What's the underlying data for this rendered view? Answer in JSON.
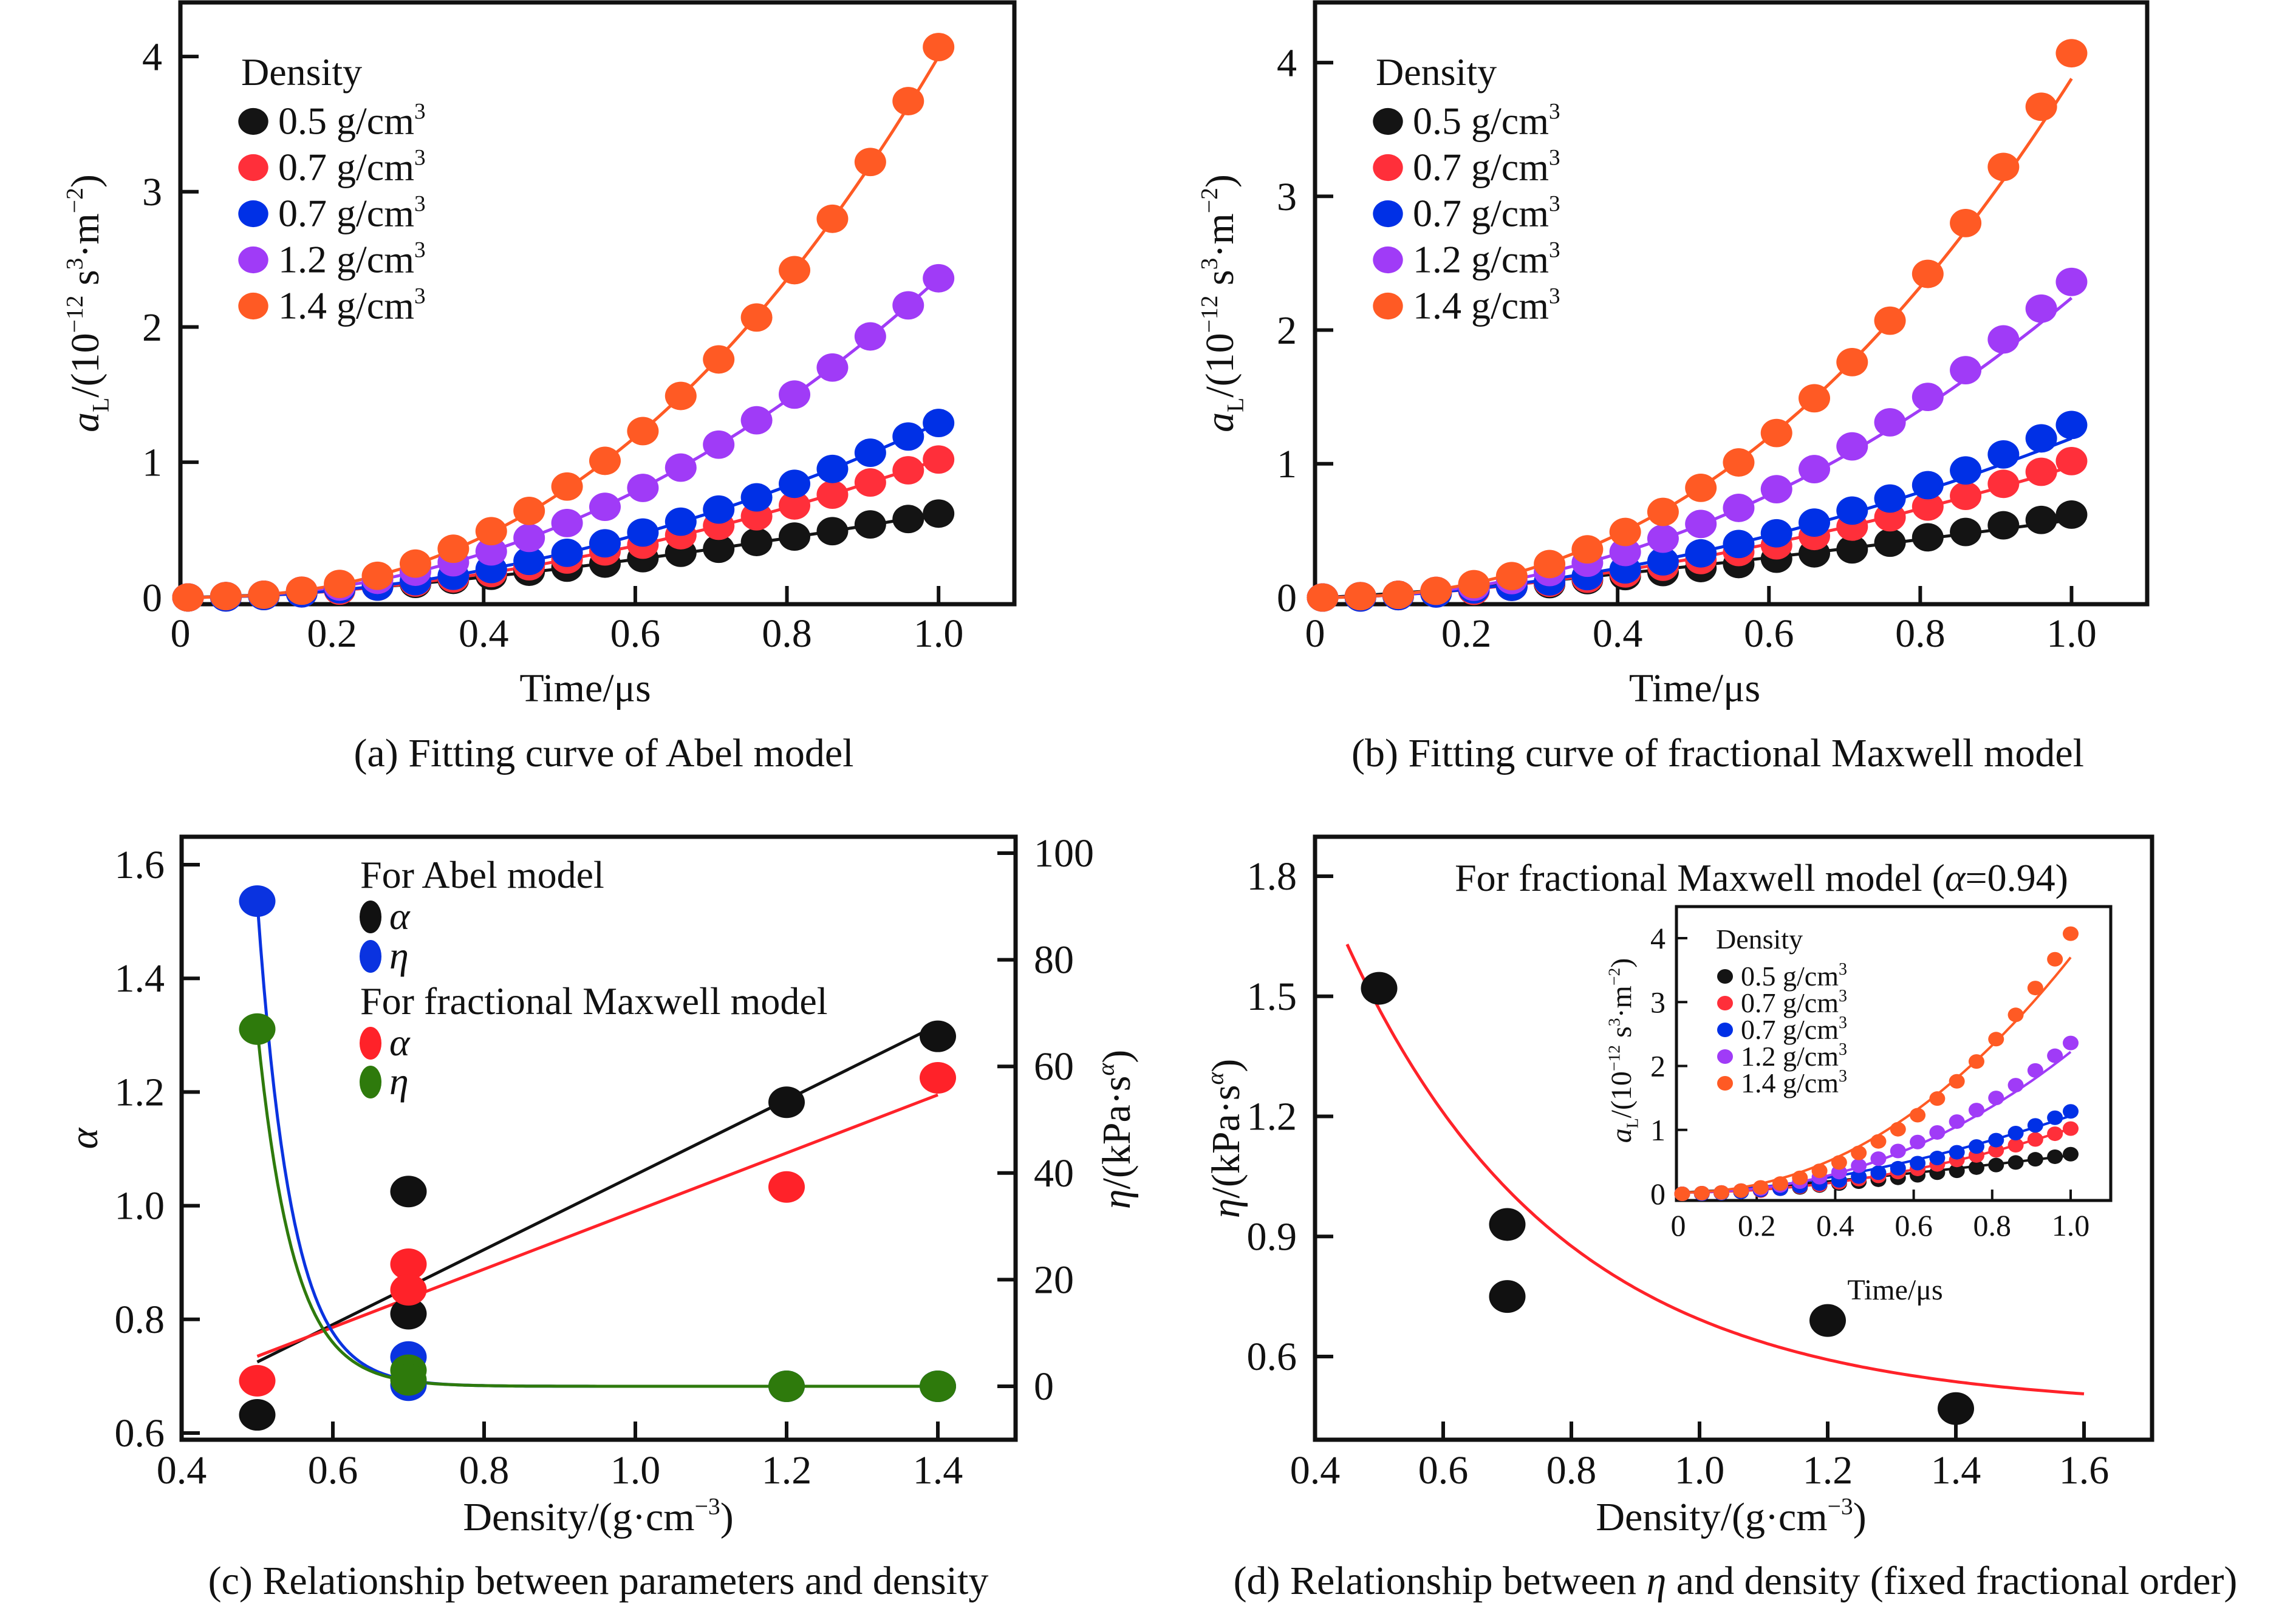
{
  "chart_data": [
    {
      "id": "a",
      "type": "scatter",
      "title": "",
      "caption": "(a) Fitting curve of Abel model",
      "xlabel": "Time/μs",
      "ylabel": "a_L/(10^-12 s^3·m^-2)",
      "ylabel_parts": {
        "main": "a",
        "sub": "L",
        "rest1": "/(10",
        "sup1": "−12",
        "rest2": " s",
        "sup2": "3",
        "rest3": "·m",
        "sup3": "−2",
        "rest4": ")"
      },
      "xlim": [
        0,
        1.1
      ],
      "ylim": [
        -0.05,
        4.4
      ],
      "xticks": [
        0,
        0.2,
        0.4,
        0.6,
        0.8,
        1.0
      ],
      "xtick_labels": [
        "0",
        "0.2",
        "0.4",
        "0.6",
        "0.8",
        "1.0"
      ],
      "yticks": [
        0,
        1,
        2,
        3,
        4
      ],
      "ytick_labels": [
        "0",
        "1",
        "2",
        "3",
        "4"
      ],
      "legend": {
        "title": "Density",
        "placement": "top-left"
      },
      "x": [
        0.01,
        0.06,
        0.11,
        0.16,
        0.21,
        0.26,
        0.31,
        0.36,
        0.41,
        0.46,
        0.51,
        0.56,
        0.61,
        0.66,
        0.71,
        0.76,
        0.81,
        0.86,
        0.91,
        0.96,
        1.0
      ],
      "series": [
        {
          "name": "0.5 g/cm3",
          "label": "0.5 g/cm",
          "sup": "3",
          "color": "#141414",
          "values": [
            0.0,
            0.01,
            0.02,
            0.04,
            0.06,
            0.08,
            0.1,
            0.13,
            0.16,
            0.19,
            0.22,
            0.25,
            0.29,
            0.33,
            0.36,
            0.41,
            0.45,
            0.49,
            0.54,
            0.58,
            0.62
          ],
          "fit": {
            "A": 0.62,
            "n": 1.55
          }
        },
        {
          "name": "0.7 g/cm3",
          "label": "0.7 g/cm",
          "sup": "3",
          "color": "#FF2F3A",
          "values": [
            0.0,
            0.0,
            0.01,
            0.03,
            0.05,
            0.08,
            0.11,
            0.14,
            0.18,
            0.23,
            0.28,
            0.34,
            0.39,
            0.46,
            0.53,
            0.6,
            0.68,
            0.76,
            0.85,
            0.94,
            1.02
          ],
          "fit": {
            "A": 1.02,
            "n": 1.92
          }
        },
        {
          "name": "0.7 g/cm3",
          "label": "0.7 g/cm",
          "sup": "3",
          "color": "#0030E6",
          "values": [
            0.0,
            0.0,
            0.01,
            0.03,
            0.06,
            0.08,
            0.12,
            0.16,
            0.21,
            0.27,
            0.33,
            0.4,
            0.48,
            0.56,
            0.65,
            0.74,
            0.84,
            0.95,
            1.07,
            1.19,
            1.29
          ],
          "fit": {
            "A": 1.29,
            "n": 2.02
          }
        },
        {
          "name": "1.2 g/cm3",
          "label": "1.2 g/cm",
          "sup": "3",
          "color": "#A03BF7",
          "values": [
            0.0,
            0.01,
            0.02,
            0.05,
            0.08,
            0.13,
            0.19,
            0.26,
            0.34,
            0.44,
            0.55,
            0.67,
            0.81,
            0.96,
            1.13,
            1.31,
            1.5,
            1.7,
            1.93,
            2.16,
            2.36
          ],
          "fit": {
            "A": 2.36,
            "n": 2.16
          }
        },
        {
          "name": "1.4 g/cm3",
          "label": "1.4 g/cm",
          "sup": "3",
          "color": "#FF5A24",
          "values": [
            0.0,
            0.01,
            0.02,
            0.05,
            0.1,
            0.16,
            0.25,
            0.36,
            0.49,
            0.64,
            0.82,
            1.01,
            1.23,
            1.49,
            1.76,
            2.07,
            2.42,
            2.8,
            3.22,
            3.67,
            4.07
          ],
          "fit": {
            "A": 4.0,
            "n": 2.38
          }
        }
      ]
    },
    {
      "id": "b",
      "type": "scatter",
      "caption": "(b) Fitting curve of fractional Maxwell model",
      "xlabel": "Time/μs",
      "ylabel": "a_L/(10^-12 s^3·m^-2)",
      "xlim": [
        0,
        1.1
      ],
      "ylim": [
        -0.05,
        4.45
      ],
      "xticks": [
        0,
        0.2,
        0.4,
        0.6,
        0.8,
        1.0
      ],
      "xtick_labels": [
        "0",
        "0.2",
        "0.4",
        "0.6",
        "0.8",
        "1.0"
      ],
      "yticks": [
        0,
        1,
        2,
        3,
        4
      ],
      "ytick_labels": [
        "0",
        "1",
        "2",
        "3",
        "4"
      ],
      "legend": {
        "title": "Density",
        "placement": "top-left"
      },
      "x": [
        0.01,
        0.06,
        0.11,
        0.16,
        0.21,
        0.26,
        0.31,
        0.36,
        0.41,
        0.46,
        0.51,
        0.56,
        0.61,
        0.66,
        0.71,
        0.76,
        0.81,
        0.86,
        0.91,
        0.96,
        1.0
      ],
      "series": [
        {
          "name": "0.5 g/cm3",
          "label": "0.5 g/cm",
          "sup": "3",
          "color": "#141414",
          "values": [
            0.0,
            0.01,
            0.02,
            0.04,
            0.06,
            0.08,
            0.1,
            0.13,
            0.16,
            0.19,
            0.22,
            0.25,
            0.29,
            0.33,
            0.36,
            0.41,
            0.45,
            0.49,
            0.54,
            0.58,
            0.62
          ],
          "fit": {
            "A": 0.58,
            "n": 1.3,
            "c": 0.0
          }
        },
        {
          "name": "0.7 g/cm3",
          "label": "0.7 g/cm",
          "sup": "3",
          "color": "#FF2F3A",
          "values": [
            0.0,
            0.0,
            0.01,
            0.03,
            0.05,
            0.08,
            0.11,
            0.14,
            0.18,
            0.23,
            0.28,
            0.34,
            0.39,
            0.46,
            0.53,
            0.6,
            0.68,
            0.76,
            0.85,
            0.94,
            1.02
          ],
          "fit": {
            "A": 0.98,
            "n": 1.75,
            "c": 0.0
          }
        },
        {
          "name": "0.7 g/cm3",
          "label": "0.7 g/cm",
          "sup": "3",
          "color": "#0030E6",
          "values": [
            0.0,
            0.0,
            0.01,
            0.03,
            0.06,
            0.08,
            0.12,
            0.16,
            0.21,
            0.27,
            0.33,
            0.4,
            0.48,
            0.56,
            0.65,
            0.74,
            0.84,
            0.95,
            1.07,
            1.19,
            1.29
          ],
          "fit": {
            "A": 1.19,
            "n": 1.85,
            "c": 0.0
          }
        },
        {
          "name": "1.2 g/cm3",
          "label": "1.2 g/cm",
          "sup": "3",
          "color": "#A03BF7",
          "values": [
            0.0,
            0.01,
            0.02,
            0.05,
            0.08,
            0.13,
            0.19,
            0.26,
            0.34,
            0.44,
            0.55,
            0.67,
            0.81,
            0.96,
            1.13,
            1.31,
            1.5,
            1.7,
            1.93,
            2.16,
            2.36
          ],
          "fit": {
            "A": 2.24,
            "n": 2.1,
            "c": 0.0
          }
        },
        {
          "name": "1.4 g/cm3",
          "label": "1.4 g/cm",
          "sup": "3",
          "color": "#FF5A24",
          "values": [
            0.0,
            0.01,
            0.02,
            0.05,
            0.1,
            0.16,
            0.25,
            0.36,
            0.49,
            0.64,
            0.82,
            1.01,
            1.23,
            1.49,
            1.76,
            2.07,
            2.42,
            2.8,
            3.22,
            3.67,
            4.07
          ],
          "fit": {
            "A": 3.88,
            "n": 2.3,
            "c": 0.0
          }
        }
      ]
    },
    {
      "id": "c",
      "type": "scatter",
      "caption": "(c) Relationship between parameters and density",
      "xlabel": "Density/(g·cm^-3)",
      "ylabel": "α",
      "ylabel_right": "η/(kPa·s^α)",
      "xlim": [
        0.4,
        1.5
      ],
      "ylim": [
        0.585,
        1.65
      ],
      "ylim_right": [
        -10.3,
        102
      ],
      "xticks": [
        0.4,
        0.6,
        0.8,
        1.0,
        1.2,
        1.4
      ],
      "xtick_labels": [
        "0.4",
        "0.6",
        "0.8",
        "1.0",
        "1.2",
        "1.4"
      ],
      "yticks": [
        0.6,
        0.8,
        1.0,
        1.2,
        1.4,
        1.6
      ],
      "ytick_labels": [
        "0.6",
        "0.8",
        "1.0",
        "1.2",
        "1.4",
        "1.6"
      ],
      "yticks_right": [
        0,
        20,
        40,
        60,
        80,
        100
      ],
      "ytick_labels_right": [
        "0",
        "20",
        "40",
        "60",
        "80",
        "100"
      ],
      "legend": {
        "placement": "top-center",
        "groups": [
          {
            "title": "For Abel model",
            "items": [
              {
                "symbol": "α",
                "color": "#111111"
              },
              {
                "symbol": "η",
                "color": "#0A33E0"
              }
            ]
          },
          {
            "title": "For fractional Maxwell model",
            "items": [
              {
                "symbol": "α",
                "color": "#FF2229"
              },
              {
                "symbol": "η",
                "color": "#2E7A0C"
              }
            ]
          }
        ]
      },
      "series": [
        {
          "name": "Abel α",
          "axis": "left",
          "color": "#111111",
          "x": [
            0.5,
            0.7,
            0.7,
            1.2,
            1.4
          ],
          "values": [
            0.632,
            1.025,
            0.81,
            1.182,
            1.298
          ],
          "fit": {
            "type": "linear",
            "x": [
              0.5,
              1.4
            ],
            "y": [
              0.725,
              1.318
            ]
          }
        },
        {
          "name": "FM α",
          "axis": "left",
          "color": "#FF2229",
          "x": [
            0.5,
            0.7,
            0.7,
            1.2,
            1.4
          ],
          "values": [
            0.692,
            0.897,
            0.852,
            1.033,
            1.225
          ],
          "fit": {
            "type": "linear",
            "x": [
              0.5,
              1.4
            ],
            "y": [
              0.735,
              1.195
            ]
          }
        },
        {
          "name": "Abel η",
          "axis": "right",
          "color": "#0A33E0",
          "x": [
            0.5,
            0.7,
            0.7,
            1.2,
            1.4
          ],
          "values": [
            91,
            5.5,
            0.2,
            0,
            0
          ],
          "fit": {
            "type": "exp",
            "x": [
              0.5,
              1.4
            ],
            "amp": 91,
            "k": 22,
            "offset": 0
          }
        },
        {
          "name": "FM η",
          "axis": "right",
          "color": "#2E7A0C",
          "x": [
            0.5,
            0.7,
            0.7,
            1.2,
            1.4
          ],
          "values": [
            67,
            3.0,
            1.2,
            0,
            0
          ],
          "fit": {
            "type": "exp",
            "x": [
              0.5,
              1.4
            ],
            "amp": 67,
            "k": 21,
            "offset": 0
          }
        }
      ]
    },
    {
      "id": "d",
      "type": "scatter",
      "caption": "(d) Relationship between η and density (fixed fractional order)",
      "caption_parts": [
        "(d) Relationship between ",
        "η",
        " and density (fixed fractional order)"
      ],
      "title": "For fractional Maxwell model (α=0.94)",
      "title_parts": [
        "For fractional Maxwell model (",
        "α",
        "=0.94)"
      ],
      "xlabel": "Density/(g·cm^-3)",
      "ylabel": "η/(kPa·s^α)",
      "xlim": [
        0.4,
        1.66
      ],
      "ylim": [
        0.42,
        1.9
      ],
      "xticks": [
        0.4,
        0.6,
        0.8,
        1.0,
        1.2,
        1.4,
        1.6
      ],
      "xtick_labels": [
        "0.4",
        "0.6",
        "0.8",
        "1.0",
        "1.2",
        "1.4",
        "1.6"
      ],
      "yticks": [
        0.6,
        0.9,
        1.2,
        1.5,
        1.8
      ],
      "ytick_labels": [
        "0.6",
        "0.9",
        "1.2",
        "1.5",
        "1.8"
      ],
      "series": [
        {
          "name": "η",
          "color": "#111111",
          "x": [
            0.5,
            0.7,
            0.7,
            1.2,
            1.4
          ],
          "values": [
            1.52,
            0.93,
            0.75,
            0.69,
            0.47
          ],
          "fit": {
            "type": "exp",
            "x": [
              0.45,
              1.6
            ],
            "amp": 1.16,
            "k": 3.0,
            "offset": 0.47,
            "x0": 0.45
          }
        }
      ],
      "inset": {
        "type": "scatter",
        "xlabel": "Time/μs",
        "ylabel": "a_L/(10^-12 s^3·m^-2)",
        "xlim": [
          0,
          1.12
        ],
        "ylim": [
          -0.1,
          4.5
        ],
        "xticks": [
          0,
          0.2,
          0.4,
          0.6,
          0.8,
          1.0
        ],
        "xtick_labels": [
          "0",
          "0.2",
          "0.4",
          "0.6",
          "0.8",
          "1.0"
        ],
        "yticks": [
          0,
          1,
          2,
          3,
          4
        ],
        "ytick_labels": [
          "0",
          "1",
          "2",
          "3",
          "4"
        ],
        "legend": {
          "title": "Density",
          "placement": "top-left"
        },
        "x": [
          0.01,
          0.06,
          0.11,
          0.16,
          0.21,
          0.26,
          0.31,
          0.36,
          0.41,
          0.46,
          0.51,
          0.56,
          0.61,
          0.66,
          0.71,
          0.76,
          0.81,
          0.86,
          0.91,
          0.96,
          1.0
        ],
        "series": [
          {
            "name": "0.5 g/cm3",
            "label": "0.5 g/cm",
            "sup": "3",
            "color": "#141414",
            "values": [
              0.0,
              0.01,
              0.02,
              0.04,
              0.06,
              0.08,
              0.1,
              0.13,
              0.16,
              0.19,
              0.22,
              0.25,
              0.29,
              0.33,
              0.36,
              0.41,
              0.45,
              0.49,
              0.54,
              0.58,
              0.62
            ],
            "fit": {
              "A": 0.58,
              "n": 1.25
            }
          },
          {
            "name": "0.7 g/cm3",
            "label": "0.7 g/cm",
            "sup": "3",
            "color": "#FF2F3A",
            "values": [
              0.0,
              0.0,
              0.01,
              0.03,
              0.05,
              0.08,
              0.11,
              0.14,
              0.18,
              0.23,
              0.28,
              0.34,
              0.39,
              0.46,
              0.53,
              0.6,
              0.68,
              0.76,
              0.85,
              0.94,
              1.02
            ],
            "fit": {
              "A": 1.0,
              "n": 2.0
            }
          },
          {
            "name": "0.7 g/cm3",
            "label": "0.7 g/cm",
            "sup": "3",
            "color": "#0030E6",
            "values": [
              0.0,
              0.0,
              0.01,
              0.03,
              0.06,
              0.08,
              0.12,
              0.16,
              0.21,
              0.27,
              0.33,
              0.4,
              0.48,
              0.56,
              0.65,
              0.74,
              0.84,
              0.95,
              1.07,
              1.19,
              1.29
            ],
            "fit": {
              "A": 1.2,
              "n": 1.7
            }
          },
          {
            "name": "1.2 g/cm3",
            "label": "1.2 g/cm",
            "sup": "3",
            "color": "#A03BF7",
            "values": [
              0.0,
              0.01,
              0.02,
              0.05,
              0.08,
              0.13,
              0.19,
              0.26,
              0.34,
              0.44,
              0.55,
              0.67,
              0.81,
              0.96,
              1.13,
              1.31,
              1.5,
              1.7,
              1.93,
              2.16,
              2.36
            ],
            "fit": {
              "A": 2.2,
              "n": 2.2
            }
          },
          {
            "name": "1.4 g/cm3",
            "label": "1.4 g/cm",
            "sup": "3",
            "color": "#FF5A24",
            "values": [
              0.0,
              0.01,
              0.02,
              0.05,
              0.1,
              0.16,
              0.25,
              0.36,
              0.49,
              0.64,
              0.82,
              1.01,
              1.23,
              1.49,
              1.76,
              2.07,
              2.42,
              2.8,
              3.22,
              3.67,
              4.07
            ],
            "fit": {
              "A": 3.68,
              "n": 2.1
            }
          }
        ]
      }
    }
  ]
}
